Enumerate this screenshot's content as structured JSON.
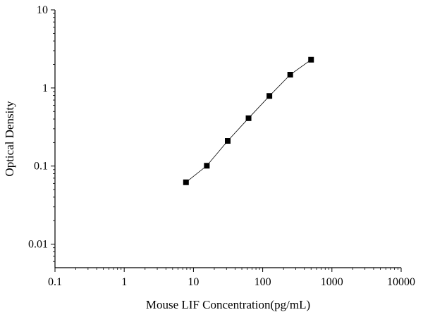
{
  "chart_data": {
    "type": "scatter",
    "title": "",
    "xlabel": "Mouse LIF Concentration(pg/mL)",
    "ylabel": "Optical Density",
    "xscale": "log",
    "yscale": "log",
    "xlim": [
      0.1,
      10000
    ],
    "ylim": [
      0.005,
      10
    ],
    "xticks": [
      {
        "value": 0.1,
        "label": "0.1"
      },
      {
        "value": 1,
        "label": "1"
      },
      {
        "value": 10,
        "label": "10"
      },
      {
        "value": 100,
        "label": "100"
      },
      {
        "value": 1000,
        "label": "1000"
      },
      {
        "value": 10000,
        "label": "10000"
      }
    ],
    "yticks": [
      {
        "value": 0.01,
        "label": "0.01"
      },
      {
        "value": 0.1,
        "label": "0.1"
      },
      {
        "value": 1,
        "label": "1"
      },
      {
        "value": 10,
        "label": "10"
      }
    ],
    "grid": false,
    "legend": "none",
    "series": [
      {
        "x": [
          7.8,
          15.6,
          31.25,
          62.5,
          125,
          250,
          500
        ],
        "y": [
          0.062,
          0.101,
          0.21,
          0.41,
          0.79,
          1.48,
          2.3
        ],
        "marker": "square",
        "connect": true
      }
    ],
    "colors": {
      "marker": "#000000",
      "line": "#000000",
      "axis": "#000000"
    }
  }
}
